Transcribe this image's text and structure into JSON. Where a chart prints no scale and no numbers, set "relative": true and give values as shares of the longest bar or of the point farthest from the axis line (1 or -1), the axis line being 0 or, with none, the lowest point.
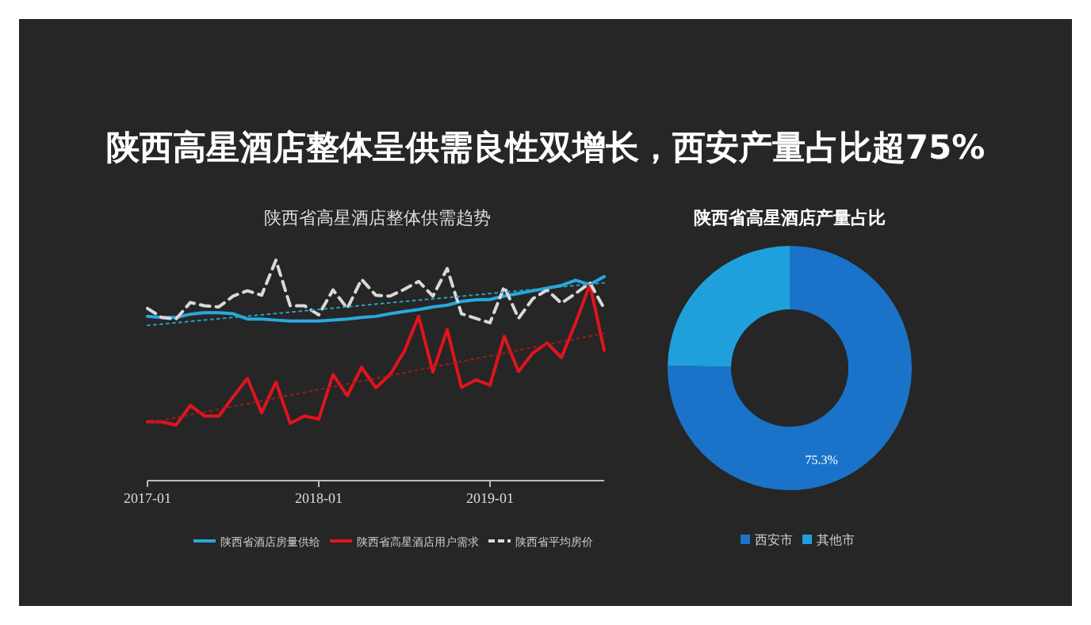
{
  "chart_data": [
    {
      "type": "line",
      "title": "陕西高星酒店整体呈供需良性双增长，西安产量占比超75%",
      "subtitle": "陕西省高星酒店整体供需趋势",
      "relative": true,
      "x": [
        "2017-01",
        "2017-02",
        "2017-03",
        "2017-04",
        "2017-05",
        "2017-06",
        "2017-07",
        "2017-08",
        "2017-09",
        "2017-10",
        "2017-11",
        "2017-12",
        "2018-01",
        "2018-02",
        "2018-03",
        "2018-04",
        "2018-05",
        "2018-06",
        "2018-07",
        "2018-08",
        "2018-09",
        "2018-10",
        "2018-11",
        "2018-12",
        "2019-01",
        "2019-02",
        "2019-03",
        "2019-04",
        "2019-05",
        "2019-06",
        "2019-07",
        "2019-08",
        "2019-09"
      ],
      "xlim": [
        "2017-01",
        "2019-09"
      ],
      "xticks": [
        "2017-01",
        "2018-01",
        "2019-01"
      ],
      "legend": "bottom",
      "grid": false,
      "series": [
        {
          "name": "陕西省酒店房量供给",
          "color": "#29a8e0",
          "line_style": "solid",
          "values": [
            0.745,
            0.74,
            0.74,
            0.755,
            0.762,
            0.762,
            0.757,
            0.733,
            0.733,
            0.728,
            0.724,
            0.724,
            0.724,
            0.728,
            0.733,
            0.74,
            0.745,
            0.757,
            0.767,
            0.776,
            0.788,
            0.796,
            0.813,
            0.82,
            0.822,
            0.837,
            0.849,
            0.861,
            0.873,
            0.885,
            0.909,
            0.889,
            0.925
          ]
        },
        {
          "name": "陕西省高星酒店用户需求",
          "color": "#e0141e",
          "line_style": "solid",
          "values": [
            0.267,
            0.267,
            0.252,
            0.341,
            0.293,
            0.293,
            0.38,
            0.464,
            0.308,
            0.447,
            0.26,
            0.293,
            0.279,
            0.481,
            0.385,
            0.514,
            0.421,
            0.481,
            0.587,
            0.745,
            0.493,
            0.685,
            0.423,
            0.457,
            0.433,
            0.654,
            0.495,
            0.579,
            0.625,
            0.558,
            0.716,
            0.889,
            0.591
          ]
        },
        {
          "name": "陕西省平均房价",
          "color": "#d9d9d9",
          "line_style": "dashed",
          "values": [
            0.781,
            0.74,
            0.733,
            0.808,
            0.793,
            0.788,
            0.837,
            0.861,
            0.841,
            1,
            0.793,
            0.793,
            0.752,
            0.865,
            0.781,
            0.913,
            0.841,
            0.837,
            0.868,
            0.904,
            0.837,
            0.962,
            0.757,
            0.736,
            0.716,
            0.88,
            0.736,
            0.825,
            0.865,
            0.805,
            0.849,
            0.897,
            0.781
          ]
        },
        {
          "color": "#2a9fbf",
          "line_style": "dotted",
          "x": [
            "2017-01",
            "2019-09"
          ],
          "values": [
            0.704,
            0.897
          ]
        },
        {
          "color": "#9a1c1c",
          "line_style": "dotted",
          "x": [
            "2017-01",
            "2019-09"
          ],
          "values": [
            0.26,
            0.668
          ]
        }
      ]
    },
    {
      "type": "donut",
      "title": "陕西省高星酒店产量占比",
      "categories": [
        "西安市",
        "其他市"
      ],
      "values": [
        75.3,
        24.7
      ],
      "colors": [
        "#1a73c9",
        "#1fa0dc"
      ],
      "value_labels": [
        "75.3%",
        null
      ],
      "legend": "bottom"
    }
  ]
}
